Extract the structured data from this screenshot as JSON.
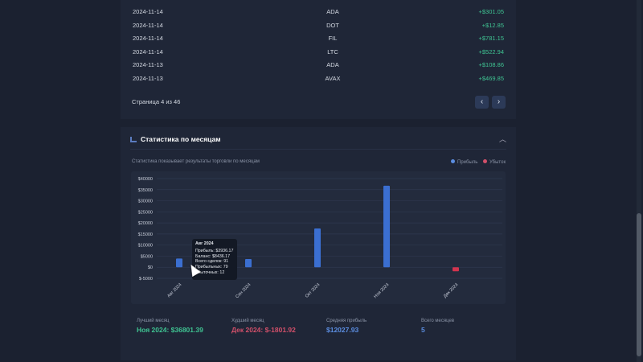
{
  "trades": [
    {
      "date": "2024-11-14",
      "coin": "ADA",
      "pnl": "+$301.05"
    },
    {
      "date": "2024-11-14",
      "coin": "DOT",
      "pnl": "+$12.85"
    },
    {
      "date": "2024-11-14",
      "coin": "FIL",
      "pnl": "+$781.15"
    },
    {
      "date": "2024-11-14",
      "coin": "LTC",
      "pnl": "+$522.94"
    },
    {
      "date": "2024-11-13",
      "coin": "ADA",
      "pnl": "+$108.86"
    },
    {
      "date": "2024-11-13",
      "coin": "AVAX",
      "pnl": "+$469.85"
    }
  ],
  "pagination": {
    "label": "Страница 4 из 46",
    "prev_icon": "chevron-left",
    "next_icon": "chevron-right"
  },
  "section": {
    "title": "Статистика по месяцам",
    "subtitle": "Статистика показывает результаты торговли по месяцам",
    "legend_profit": "Прибыль",
    "legend_loss": "Убыток",
    "profit_color": "#3b6fd1",
    "loss_color": "#d2344e"
  },
  "chart_data": {
    "type": "bar",
    "categories": [
      "Авг 2024",
      "Сен 2024",
      "Окт 2024",
      "Ноя 2024",
      "Дек 2024"
    ],
    "values": [
      3936.17,
      3700,
      17504,
      36801.39,
      -1801.92
    ],
    "ylim": [
      -5000,
      40000
    ],
    "yticks": [
      "$40000",
      "$35000",
      "$30000",
      "$25000",
      "$20000",
      "$15000",
      "$10000",
      "$5000",
      "$0",
      "$-5000"
    ],
    "grid": true,
    "legend": "top-right"
  },
  "tooltip": {
    "title": "Авг 2024",
    "lines": [
      "Прибыль: $3936.17",
      "Баланс: $8436.17",
      "Всего сделок: 91",
      "Прибыльных: 79",
      "Убыточных: 12"
    ]
  },
  "summary": [
    {
      "label": "Лучший месяц",
      "value": "Ноя 2024: $36801.39",
      "color": "#3fc392"
    },
    {
      "label": "Худший месяц",
      "value": "Дек 2024: $-1801.92",
      "color": "#d2506a"
    },
    {
      "label": "Средняя прибыль",
      "value": "$12027.93",
      "color": "#5b8de0"
    },
    {
      "label": "Всего месяцев",
      "value": "5",
      "color": "#5b8de0"
    }
  ]
}
